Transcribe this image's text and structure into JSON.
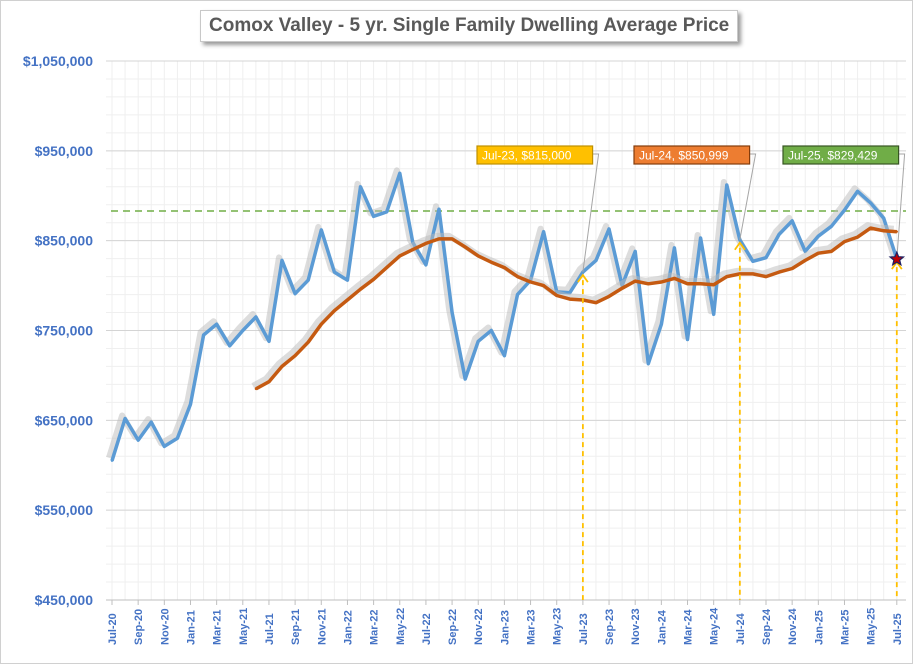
{
  "chart_data": {
    "type": "line",
    "title": "Comox Valley - 5 yr. Single Family Dwelling Average Price",
    "xlabel": "",
    "ylabel": "",
    "ylim": [
      450000,
      1050000
    ],
    "yticks": [
      "$450,000",
      "$550,000",
      "$650,000",
      "$750,000",
      "$850,000",
      "$950,000",
      "$1,050,000"
    ],
    "ytick_values": [
      450000,
      550000,
      650000,
      750000,
      850000,
      950000,
      1050000
    ],
    "x": [
      "Jul-20",
      "Aug-20",
      "Sep-20",
      "Oct-20",
      "Nov-20",
      "Dec-20",
      "Jan-21",
      "Feb-21",
      "Mar-21",
      "Apr-21",
      "May-21",
      "Jun-21",
      "Jul-21",
      "Aug-21",
      "Sep-21",
      "Oct-21",
      "Nov-21",
      "Dec-21",
      "Jan-22",
      "Feb-22",
      "Mar-22",
      "Apr-22",
      "May-22",
      "Jun-22",
      "Jul-22",
      "Aug-22",
      "Sep-22",
      "Oct-22",
      "Nov-22",
      "Dec-22",
      "Jan-23",
      "Feb-23",
      "Mar-23",
      "Apr-23",
      "May-23",
      "Jun-23",
      "Jul-23",
      "Aug-23",
      "Sep-23",
      "Oct-23",
      "Nov-23",
      "Dec-23",
      "Jan-24",
      "Feb-24",
      "Mar-24",
      "Apr-24",
      "May-24",
      "Jun-24",
      "Jul-24",
      "Aug-24",
      "Sep-24",
      "Oct-24",
      "Nov-24",
      "Dec-24",
      "Jan-25",
      "Feb-25",
      "Mar-25",
      "Apr-25",
      "May-25",
      "Jun-25",
      "Jul-25"
    ],
    "xtick_labels": [
      "Jul-20",
      "Sep-20",
      "Nov-20",
      "Jan-21",
      "Mar-21",
      "May-21",
      "Jul-21",
      "Sep-21",
      "Nov-21",
      "Jan-22",
      "Mar-22",
      "May-22",
      "Jul-22",
      "Sep-22",
      "Nov-22",
      "Jan-23",
      "Mar-23",
      "May-23",
      "Jul-23",
      "Sep-23",
      "Nov-23",
      "Jan-24",
      "Mar-24",
      "May-24",
      "Jul-24",
      "Sep-24",
      "Nov-24",
      "Jan-25",
      "Mar-25",
      "May-25",
      "Jul-25"
    ],
    "grid": true,
    "series": [
      {
        "color": "#5b9bd5",
        "values": [
          605000,
          652000,
          628000,
          648000,
          621000,
          630000,
          668000,
          745000,
          757000,
          733000,
          750000,
          765000,
          738000,
          828000,
          791000,
          806000,
          862000,
          815000,
          806000,
          910000,
          877000,
          882000,
          925000,
          848000,
          823000,
          885000,
          770000,
          696000,
          738000,
          750000,
          722000,
          790000,
          806000,
          860000,
          793000,
          792000,
          815000,
          828000,
          863000,
          800000,
          838000,
          713000,
          757000,
          842000,
          740000,
          853000,
          768000,
          912000,
          850999,
          827000,
          831000,
          857000,
          872000,
          838000,
          855000,
          866000,
          884000,
          905000,
          892000,
          875000,
          829429
        ]
      },
      {
        "color": "#c55a11",
        "values": [
          null,
          null,
          null,
          null,
          null,
          null,
          null,
          null,
          null,
          null,
          null,
          685000,
          693000,
          710000,
          722000,
          737000,
          757000,
          772000,
          784000,
          796000,
          807000,
          820000,
          833000,
          840000,
          847000,
          852000,
          852000,
          843000,
          833000,
          826000,
          820000,
          810000,
          804000,
          800000,
          789000,
          785000,
          784000,
          781000,
          788000,
          797000,
          805000,
          802000,
          804000,
          808000,
          802000,
          802000,
          801000,
          810000,
          813000,
          813000,
          810000,
          815000,
          819000,
          828000,
          836000,
          838000,
          849000,
          854000,
          864000,
          861000,
          860000
        ]
      }
    ],
    "reference_line": {
      "value": 883000,
      "color": "#70ad47",
      "style": "dashed"
    },
    "annotations": [
      {
        "label": "Jul-23, $815,000",
        "x": "Jul-23",
        "value": 815000,
        "fill": "#ffc000",
        "border": "#bf9000"
      },
      {
        "label": "Jul-24, $850,999",
        "x": "Jul-24",
        "value": 850999,
        "fill": "#ed7d31",
        "border": "#843c0c"
      },
      {
        "label": "Jul-25, $829,429",
        "x": "Jul-25",
        "value": 829429,
        "fill": "#70ad47",
        "border": "#375623"
      }
    ],
    "marker": {
      "x": "Jul-25",
      "shape": "star",
      "color": "#c00000"
    },
    "axis_label_color": "#4472c4"
  }
}
